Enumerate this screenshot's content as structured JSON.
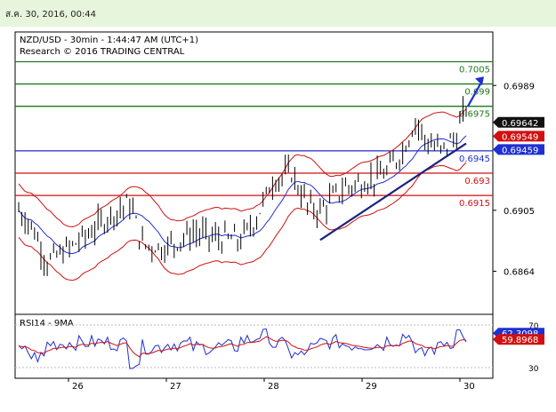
{
  "header": {
    "timestamp": "ส.ค. 30, 2016, 00:44"
  },
  "chart_data": {
    "type": "candlestick",
    "title": "NZD/USD - 30min - 1:44:47 AM (UTC+1)",
    "subtitle": "Research © 2016 TRADING CENTRAL",
    "ylim": [
      0.6835,
      0.7025
    ],
    "yticks": [
      "0.6989",
      "0.6905",
      "0.6864"
    ],
    "x_labels": [
      "26",
      "27",
      "28",
      "29",
      "30"
    ],
    "levels": [
      {
        "label": "0.7005",
        "value": 0.7005,
        "color": "#1a7a1a"
      },
      {
        "label": "0.699",
        "value": 0.699,
        "color": "#1a7a1a"
      },
      {
        "label": "0.6975",
        "value": 0.6975,
        "color": "#1a7a1a"
      },
      {
        "label": "0.6945",
        "value": 0.6945,
        "color": "#1f2fd0"
      },
      {
        "label": "0.693",
        "value": 0.693,
        "color": "#d01010"
      },
      {
        "label": "0.6915",
        "value": 0.6915,
        "color": "#d01010"
      }
    ],
    "price_tags": [
      {
        "label": "0.69642",
        "value": 0.69642,
        "bg": "#111111"
      },
      {
        "label": "0.69549",
        "value": 0.69549,
        "bg": "#d01010"
      },
      {
        "label": "0.69459",
        "value": 0.69459,
        "bg": "#1f2fd0"
      }
    ],
    "trendline": {
      "from": [
        0.6885
      ],
      "to": [
        0.695
      ]
    },
    "rsi": {
      "label": "RSI14 - 9MA",
      "ylim": [
        20,
        80
      ],
      "yticks": [
        "70",
        "30"
      ],
      "current": "62.3098",
      "ma": "59.8968"
    }
  },
  "colors": {
    "price": "#000000",
    "bollinger": "#d01010",
    "ma": "#1f2fd0",
    "trend": "#1a237e"
  },
  "icons": {
    "arrow": "up-arrow-icon"
  }
}
